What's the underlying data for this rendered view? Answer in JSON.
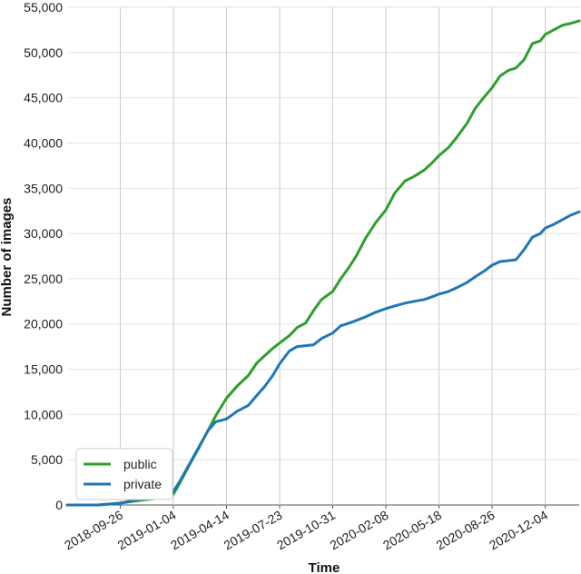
{
  "chart_data": {
    "type": "line",
    "xlabel": "Time",
    "ylabel": "Number of images",
    "x_tick_labels": [
      "2018-09-26",
      "2019-01-04",
      "2019-04-14",
      "2019-07-23",
      "2019-10-31",
      "2020-02-08",
      "2020-05-18",
      "2020-08-26",
      "2020-12-04"
    ],
    "y_tick_labels": [
      "0",
      "5,000",
      "10,000",
      "15,000",
      "20,000",
      "25,000",
      "30,000",
      "35,000",
      "40,000",
      "45,000",
      "50,000",
      "55,000"
    ],
    "xlim": [
      "2018-06-18",
      "2021-02-06"
    ],
    "ylim": [
      0,
      55000
    ],
    "grid": true,
    "legend_position": "bottom-left",
    "x": [
      "2018-06-18",
      "2018-08-15",
      "2018-09-26",
      "2018-10-20",
      "2018-11-15",
      "2018-12-01",
      "2018-12-20",
      "2019-01-04",
      "2019-01-15",
      "2019-02-01",
      "2019-02-20",
      "2019-03-10",
      "2019-03-25",
      "2019-04-14",
      "2019-05-05",
      "2019-05-25",
      "2019-06-10",
      "2019-06-25",
      "2019-07-10",
      "2019-07-23",
      "2019-08-10",
      "2019-08-25",
      "2019-09-10",
      "2019-09-25",
      "2019-10-10",
      "2019-10-31",
      "2019-11-15",
      "2019-12-01",
      "2019-12-15",
      "2020-01-01",
      "2020-01-20",
      "2020-02-08",
      "2020-02-25",
      "2020-03-15",
      "2020-04-01",
      "2020-04-20",
      "2020-05-05",
      "2020-05-18",
      "2020-06-05",
      "2020-06-20",
      "2020-07-10",
      "2020-07-25",
      "2020-08-10",
      "2020-08-26",
      "2020-09-10",
      "2020-09-25",
      "2020-10-10",
      "2020-10-25",
      "2020-11-10",
      "2020-11-25",
      "2020-12-04",
      "2020-12-20",
      "2021-01-05",
      "2021-01-20",
      "2021-02-06"
    ],
    "series": [
      {
        "name": "public",
        "color": "#2ca02c",
        "values": [
          0,
          0,
          200,
          400,
          600,
          700,
          900,
          1200,
          2300,
          4200,
          6200,
          8200,
          9900,
          11800,
          13200,
          14300,
          15700,
          16500,
          17300,
          17900,
          18700,
          19600,
          20100,
          21500,
          22700,
          23600,
          25000,
          26300,
          27600,
          29500,
          31200,
          32600,
          34500,
          35800,
          36300,
          37000,
          37800,
          38600,
          39500,
          40600,
          42200,
          43800,
          45000,
          46100,
          47400,
          48000,
          48300,
          49200,
          51000,
          51300,
          52000,
          52500,
          53000,
          53200,
          53500
        ],
        "values_note": ""
      },
      {
        "name": "private",
        "color": "#1f77b4",
        "values": [
          0,
          0,
          200,
          500,
          800,
          1000,
          1200,
          1500,
          2500,
          4300,
          6300,
          8200,
          9200,
          9500,
          10400,
          11000,
          12100,
          13100,
          14300,
          15600,
          17000,
          17500,
          17600,
          17700,
          18400,
          19000,
          19800,
          20100,
          20400,
          20800,
          21300,
          21700,
          22000,
          22300,
          22500,
          22700,
          23000,
          23300,
          23600,
          24000,
          24600,
          25200,
          25800,
          26500,
          26900,
          27000,
          27100,
          28200,
          29600,
          30000,
          30600,
          31000,
          31500,
          32000,
          32400
        ],
        "values_note": ""
      }
    ]
  }
}
